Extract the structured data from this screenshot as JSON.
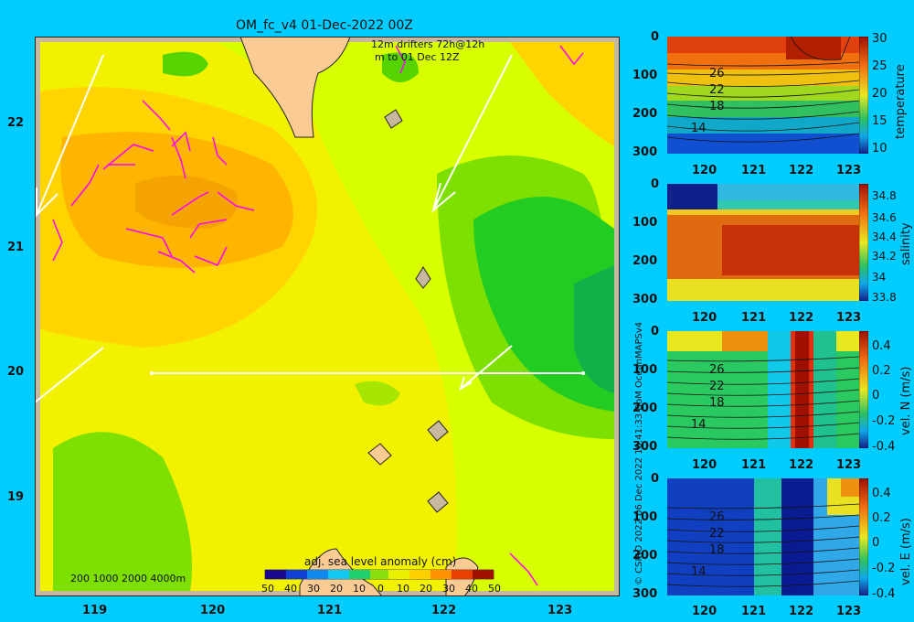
{
  "map": {
    "title": "OM_fc_v4  01-Dec-2022 00Z",
    "drifter_line1": "12m    drifters 72h@12h",
    "drifter_line2": "m        to 01 Dec 12Z",
    "depth_legend": "200  1000  2000  4000m",
    "colorbar_title": "adj. sea level anomaly (cm)",
    "colorbar_ticks": [
      "50",
      "40",
      "30",
      "20",
      "10",
      "0",
      "10",
      "20",
      "30",
      "40",
      "50"
    ],
    "lat_ticks": [
      "22",
      "21",
      "20",
      "19"
    ],
    "lon_ticks": [
      "119",
      "120",
      "121",
      "122",
      "123"
    ],
    "credit": "© CSIRO 2022  06 Dec 2022 10:41:33 BoM OceanMAPSv4"
  },
  "sections": [
    {
      "label": "temperature",
      "cb_ticks": [
        "30",
        "25",
        "20",
        "15",
        "10"
      ],
      "contours": [
        "26",
        "22",
        "18",
        "14"
      ]
    },
    {
      "label": "salinity",
      "cb_ticks": [
        "34.8",
        "34.6",
        "34.4",
        "34.2",
        "34",
        "33.8"
      ],
      "contours": []
    },
    {
      "label": "vel. N (m/s)",
      "cb_ticks": [
        "0.4",
        "0.2",
        "0",
        "-0.2",
        "-0.4"
      ],
      "contours": [
        "26",
        "22",
        "18",
        "14"
      ]
    },
    {
      "label": "vel. E (m/s)",
      "cb_ticks": [
        "0.4",
        "0.2",
        "0",
        "-0.2",
        "-0.4"
      ],
      "contours": [
        "26",
        "22",
        "18",
        "14"
      ]
    }
  ],
  "section_axes": {
    "depth_ticks": [
      "0",
      "100",
      "200",
      "300"
    ],
    "lon_ticks": [
      "120",
      "121",
      "122",
      "123"
    ]
  }
}
